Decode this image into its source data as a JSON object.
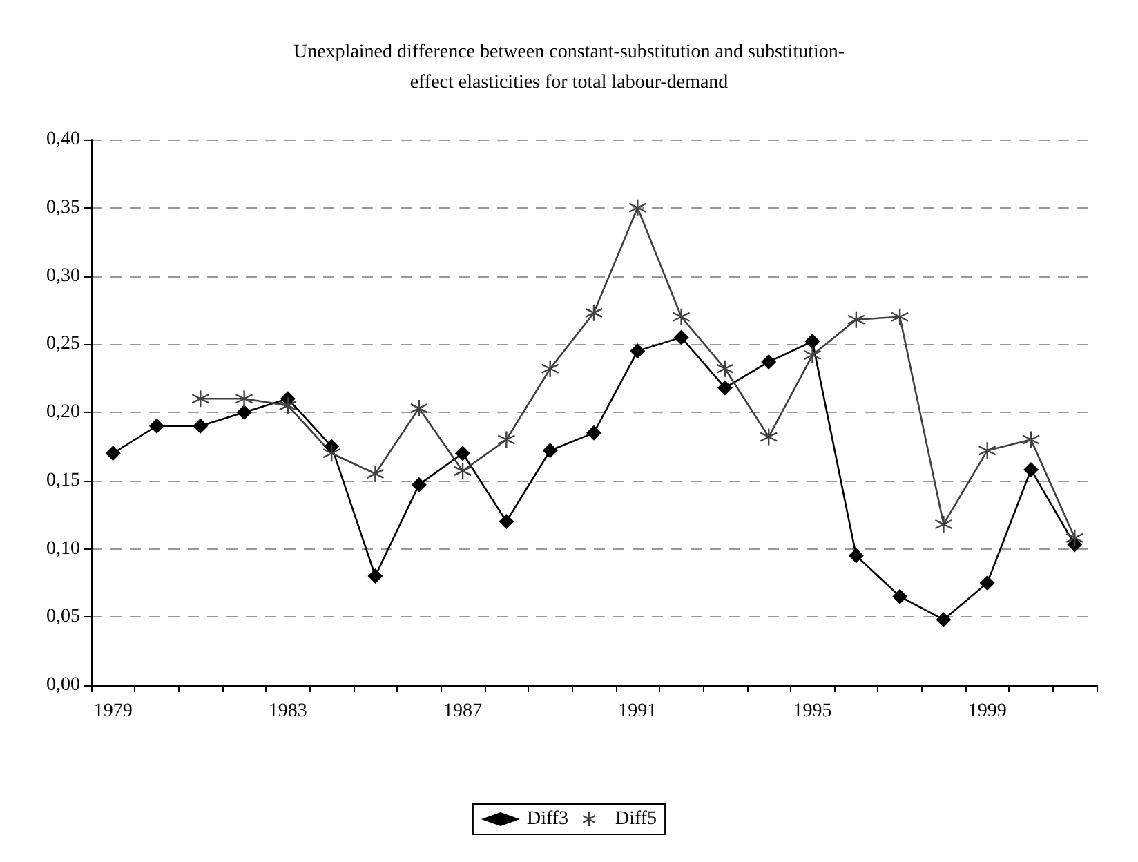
{
  "chart_data": {
    "type": "line",
    "title": "Unexplained difference between constant-substitution and substitution-\neffect elasticities for total labour-demand",
    "categories": [
      "1979",
      null,
      null,
      null,
      "1983",
      null,
      null,
      null,
      "1987",
      null,
      null,
      null,
      "1991",
      null,
      null,
      null,
      "1995",
      null,
      null,
      null,
      "1999",
      null,
      null
    ],
    "series": [
      {
        "name": "Diff3",
        "color": "#000000",
        "marker": "diamond",
        "values": [
          0.17,
          0.19,
          0.19,
          0.2,
          0.21,
          0.175,
          0.08,
          0.147,
          0.17,
          0.12,
          0.172,
          0.185,
          0.245,
          0.255,
          0.218,
          0.237,
          0.252,
          0.095,
          0.065,
          0.048,
          0.075,
          0.158,
          0.103
        ]
      },
      {
        "name": "Diff5",
        "color": "#404040",
        "marker": "cross",
        "values": [
          null,
          null,
          0.21,
          0.21,
          0.205,
          0.17,
          0.155,
          0.203,
          0.157,
          0.18,
          0.232,
          0.273,
          0.35,
          0.27,
          0.232,
          0.182,
          0.242,
          0.268,
          0.27,
          0.118,
          0.172,
          0.18,
          0.108
        ]
      }
    ],
    "ylim": [
      0,
      0.4
    ],
    "yticks": [
      {
        "value": 0,
        "label": "0,00"
      },
      {
        "value": 0.05,
        "label": "0,05"
      },
      {
        "value": 0.1,
        "label": "0,10"
      },
      {
        "value": 0.15,
        "label": "0,15"
      },
      {
        "value": 0.2,
        "label": "0,20"
      },
      {
        "value": 0.25,
        "label": "0,25"
      },
      {
        "value": 0.3,
        "label": "0,30"
      },
      {
        "value": 0.35,
        "label": "0,35"
      },
      {
        "value": 0.4,
        "label": "0,40"
      }
    ],
    "grid": "y",
    "legend": "bottom",
    "line_style": "solid"
  }
}
